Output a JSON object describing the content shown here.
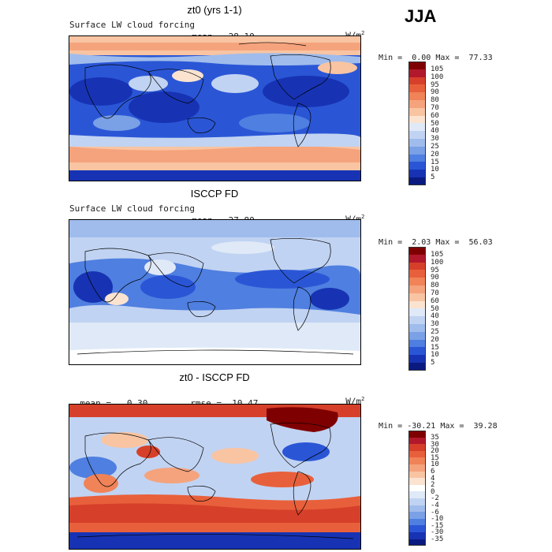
{
  "season": "JJA",
  "panels": [
    {
      "title": "zt0 (yrs 1-1)",
      "field": "Surface LW cloud forcing",
      "mean_label": "mean=",
      "mean_value": "28.10",
      "units": "W/m",
      "units_exp": "2",
      "min_label": "Min =",
      "min_value": "0.00",
      "max_label": "Max =",
      "max_value": "77.33",
      "legend_levels": [
        "105",
        "100",
        "95",
        "90",
        "80",
        "70",
        "60",
        "50",
        "40",
        "30",
        "25",
        "20",
        "15",
        "10",
        "5"
      ]
    },
    {
      "title": "ISCCP FD",
      "field": "Surface LW cloud forcing",
      "mean_label": "mean=",
      "mean_value": "27.80",
      "units": "W/m",
      "units_exp": "2",
      "min_label": "Min =",
      "min_value": "2.03",
      "max_label": "Max =",
      "max_value": "56.03",
      "legend_levels": [
        "105",
        "100",
        "95",
        "90",
        "80",
        "70",
        "60",
        "50",
        "40",
        "30",
        "25",
        "20",
        "15",
        "10",
        "5"
      ]
    },
    {
      "title": "zt0 - ISCCP FD",
      "mean_label": "mean =",
      "mean_value": "0.30",
      "rmse_label": "rmse =",
      "rmse_value": "10.47",
      "units": "W/m",
      "units_exp": "2",
      "min_label": "Min =",
      "min_value": "-30.21",
      "max_label": "Max =",
      "max_value": "39.28",
      "legend_levels": [
        "35",
        "30",
        "20",
        "15",
        "10",
        "6",
        "4",
        "2",
        "0",
        "-2",
        "-4",
        "-6",
        "-10",
        "-15",
        "-30",
        "-35"
      ]
    }
  ],
  "colors": {
    "abs_scale": [
      "#7f0000",
      "#b2182b",
      "#d6402a",
      "#e8603b",
      "#f08358",
      "#f5a37c",
      "#f8c4a2",
      "#fbe3d0",
      "#dfe9f7",
      "#c1d3f2",
      "#9fbcec",
      "#7aa0e6",
      "#4f7fe0",
      "#2a56d6",
      "#1733b3",
      "#0a1a80"
    ],
    "diff_scale": [
      "#7f0000",
      "#b2182b",
      "#d6402a",
      "#e8603b",
      "#f08358",
      "#f5a37c",
      "#f8c4a2",
      "#fbe3d0",
      "#ffffff",
      "#dfe9f7",
      "#c1d3f2",
      "#9fbcec",
      "#7aa0e6",
      "#4f7fe0",
      "#2a56d6",
      "#1733b3",
      "#0a1a80"
    ]
  }
}
